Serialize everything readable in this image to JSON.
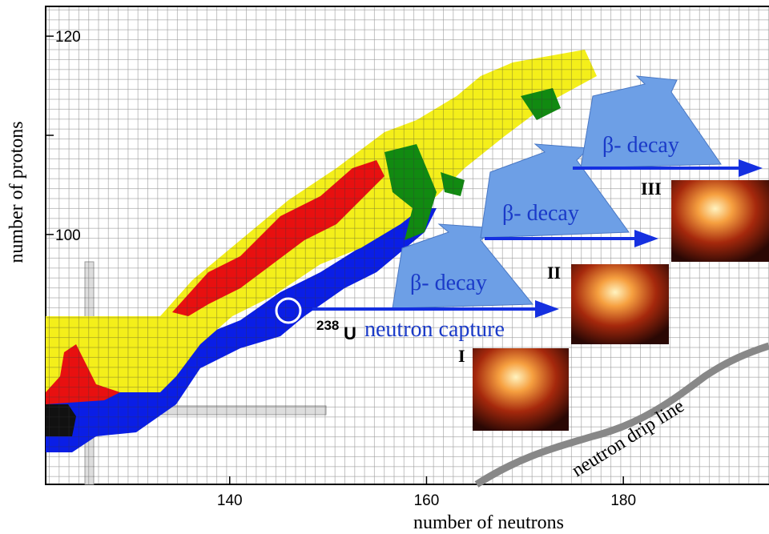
{
  "chart_data": {
    "type": "nuclide-chart",
    "x_label": "number of neutrons",
    "y_label": "number of protons",
    "xlim": [
      121.3,
      194.8
    ],
    "ylim": [
      74.8,
      123
    ],
    "xticks": [
      140,
      160,
      180
    ],
    "yticks": [
      {
        "value": 100,
        "label": "100"
      },
      {
        "value": 110,
        "label": null
      },
      {
        "value": 120,
        "label": "120"
      }
    ],
    "annotations": {
      "decay_1": "β- decay",
      "decay_2": "β- decay",
      "decay_3": "β- decay",
      "mass_number": "238",
      "element": "U",
      "capture": "neutron capture",
      "stage_1": "I",
      "stage_2": "II",
      "stage_3": "III",
      "drip_line": "neutron drip line"
    }
  }
}
